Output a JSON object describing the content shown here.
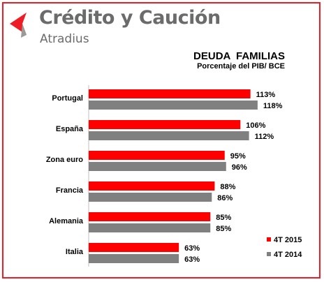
{
  "brand": {
    "name": "Crédito y Caución",
    "sub": "Atradius",
    "colors": {
      "mark_red": "#ee1c25",
      "mark_gray": "#9a9a9a",
      "text": "#6b6b6b"
    }
  },
  "chart_data": {
    "type": "bar",
    "orientation": "horizontal",
    "title": "DEUDA  FAMILIAS",
    "subtitle": "Porcentaje del PIB/ BCE",
    "categories": [
      "Portugal",
      "España",
      "Zona euro",
      "Francia",
      "Alemania",
      "Italia"
    ],
    "series": [
      {
        "name": "4T 2015",
        "color": "#ff0000",
        "values": [
          113,
          106,
          95,
          88,
          85,
          63
        ]
      },
      {
        "name": "4T 2014",
        "color": "#808080",
        "values": [
          118,
          112,
          96,
          86,
          85,
          63
        ]
      }
    ],
    "value_suffix": "%",
    "xlim": [
      0,
      130
    ],
    "grid": false,
    "legend_position": "bottom-right",
    "frame_color": "#ee1c25"
  }
}
